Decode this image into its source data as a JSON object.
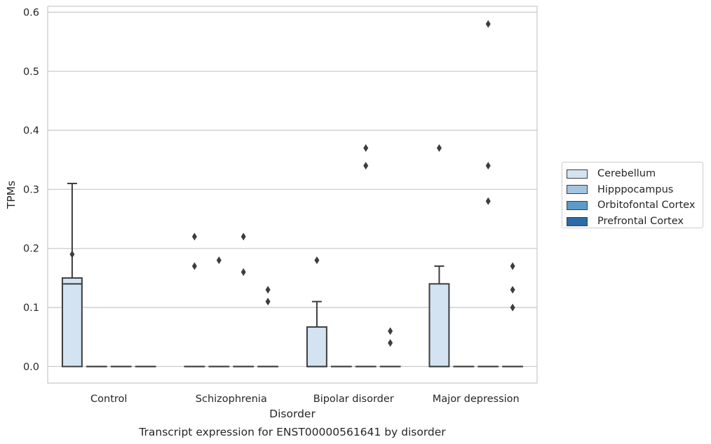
{
  "chart_data": {
    "type": "box",
    "title": "Transcript expression for ENST00000561641 by disorder",
    "xlabel": "Disorder",
    "ylabel": "TPMs",
    "categories": [
      "Control",
      "Schizophrenia",
      "Bipolar disorder",
      "Major depression"
    ],
    "ylim": [
      -0.028,
      0.61
    ],
    "yticks": [
      0.0,
      0.1,
      0.2,
      0.3,
      0.4,
      0.5,
      0.6
    ],
    "ytick_labels": [
      "0.0",
      "0.1",
      "0.2",
      "0.3",
      "0.4",
      "0.5",
      "0.6"
    ],
    "grid": true,
    "legend_position": "right",
    "series": [
      {
        "name": "Cerebellum",
        "color": "#d3e3f2",
        "boxes": [
          {
            "q1": 0.0,
            "median": 0.14,
            "q3": 0.15,
            "whisker_low": 0.0,
            "whisker_high": 0.31,
            "outliers": [
              0.19
            ]
          },
          {
            "q1": 0.0,
            "median": 0.0,
            "q3": 0.0,
            "whisker_low": 0.0,
            "whisker_high": 0.0,
            "outliers": [
              0.17,
              0.22
            ]
          },
          {
            "q1": 0.0,
            "median": 0.0,
            "q3": 0.067,
            "whisker_low": 0.0,
            "whisker_high": 0.11,
            "outliers": [
              0.18
            ]
          },
          {
            "q1": 0.0,
            "median": 0.0,
            "q3": 0.14,
            "whisker_low": 0.0,
            "whisker_high": 0.17,
            "outliers": [
              0.37
            ]
          }
        ]
      },
      {
        "name": "Hipppocampus",
        "color": "#a4c4df",
        "boxes": [
          {
            "q1": 0.0,
            "median": 0.0,
            "q3": 0.0,
            "whisker_low": 0.0,
            "whisker_high": 0.0,
            "outliers": []
          },
          {
            "q1": 0.0,
            "median": 0.0,
            "q3": 0.0,
            "whisker_low": 0.0,
            "whisker_high": 0.0,
            "outliers": [
              0.18
            ]
          },
          {
            "q1": 0.0,
            "median": 0.0,
            "q3": 0.0,
            "whisker_low": 0.0,
            "whisker_high": 0.0,
            "outliers": []
          },
          {
            "q1": 0.0,
            "median": 0.0,
            "q3": 0.0,
            "whisker_low": 0.0,
            "whisker_high": 0.0,
            "outliers": []
          }
        ]
      },
      {
        "name": "Orbitofontal Cortex",
        "color": "#5c9bc8",
        "boxes": [
          {
            "q1": 0.0,
            "median": 0.0,
            "q3": 0.0,
            "whisker_low": 0.0,
            "whisker_high": 0.0,
            "outliers": []
          },
          {
            "q1": 0.0,
            "median": 0.0,
            "q3": 0.0,
            "whisker_low": 0.0,
            "whisker_high": 0.0,
            "outliers": [
              0.16,
              0.22
            ]
          },
          {
            "q1": 0.0,
            "median": 0.0,
            "q3": 0.0,
            "whisker_low": 0.0,
            "whisker_high": 0.0,
            "outliers": [
              0.34,
              0.37
            ]
          },
          {
            "q1": 0.0,
            "median": 0.0,
            "q3": 0.0,
            "whisker_low": 0.0,
            "whisker_high": 0.0,
            "outliers": [
              0.28,
              0.34,
              0.58
            ]
          }
        ]
      },
      {
        "name": "Prefrontal Cortex",
        "color": "#2c6ba7",
        "boxes": [
          {
            "q1": 0.0,
            "median": 0.0,
            "q3": 0.0,
            "whisker_low": 0.0,
            "whisker_high": 0.0,
            "outliers": []
          },
          {
            "q1": 0.0,
            "median": 0.0,
            "q3": 0.0,
            "whisker_low": 0.0,
            "whisker_high": 0.0,
            "outliers": [
              0.11,
              0.13
            ]
          },
          {
            "q1": 0.0,
            "median": 0.0,
            "q3": 0.0,
            "whisker_low": 0.0,
            "whisker_high": 0.0,
            "outliers": [
              0.04,
              0.06
            ]
          },
          {
            "q1": 0.0,
            "median": 0.0,
            "q3": 0.0,
            "whisker_low": 0.0,
            "whisker_high": 0.0,
            "outliers": [
              0.1,
              0.13,
              0.17
            ]
          }
        ]
      }
    ]
  }
}
